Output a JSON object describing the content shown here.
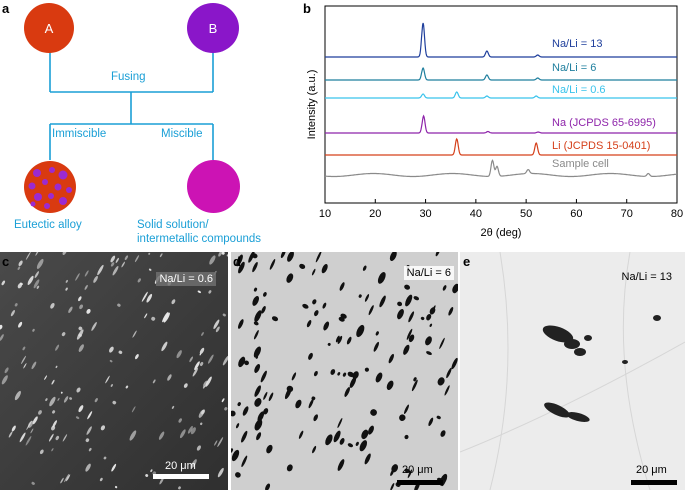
{
  "panels": {
    "a": {
      "label": "a",
      "circle_a": "A",
      "circle_b": "B",
      "fusing": "Fusing",
      "immiscible": "Immiscible",
      "miscible": "Miscible",
      "result_left": "Eutectic alloy",
      "result_right_line1": "Solid solution/",
      "result_right_line2": "intermetallic compounds",
      "colors": {
        "a": "#d93a10",
        "b": "#8a16c9",
        "solution": "#cc13b4",
        "line": "#1a9fd6",
        "dots": "#9b2ad1"
      }
    },
    "b": {
      "label": "b"
    },
    "c": {
      "label": "c",
      "tag": "Na/Li = 0.6",
      "scale": "20 μm"
    },
    "d": {
      "label": "d",
      "tag": "Na/Li = 6",
      "scale": "20 μm"
    },
    "e": {
      "label": "e",
      "tag": "Na/Li = 13",
      "scale": "20 μm"
    }
  },
  "chart_data": {
    "type": "line",
    "xlabel": "2θ (deg)",
    "ylabel": "Intensity (a.u.)",
    "xlim": [
      10,
      80
    ],
    "xticks": [
      10,
      20,
      30,
      40,
      50,
      60,
      70,
      80
    ],
    "grid": false,
    "series": [
      {
        "name": "Na/Li = 13",
        "color": "#1f3f9c",
        "peaks": [
          [
            29.5,
            34
          ],
          [
            42.2,
            6
          ],
          [
            52.3,
            2
          ]
        ]
      },
      {
        "name": "Na/Li = 6",
        "color": "#1f7f9e",
        "peaks": [
          [
            29.5,
            12
          ],
          [
            42.2,
            5
          ],
          [
            52.3,
            2
          ]
        ]
      },
      {
        "name": "Na/Li = 0.6",
        "color": "#39c3ec",
        "peaks": [
          [
            29.5,
            4
          ],
          [
            36.2,
            6
          ],
          [
            42.2,
            2
          ],
          [
            52.0,
            2
          ]
        ]
      },
      {
        "name": "Na (JCPDS 65-6995)",
        "color": "#8e24aa",
        "peaks": [
          [
            29.6,
            17
          ],
          [
            42.4,
            1.5
          ],
          [
            52.4,
            1
          ]
        ]
      },
      {
        "name": "Li (JCPDS 15-0401)",
        "color": "#d5401b",
        "peaks": [
          [
            36.2,
            16
          ],
          [
            52.0,
            12
          ]
        ]
      },
      {
        "name": "Sample cell",
        "color": "#8a8a8a",
        "peaks": [
          [
            43.3,
            16
          ],
          [
            44.2,
            10
          ],
          [
            50.4,
            4
          ],
          [
            74.3,
            3
          ]
        ]
      }
    ]
  }
}
